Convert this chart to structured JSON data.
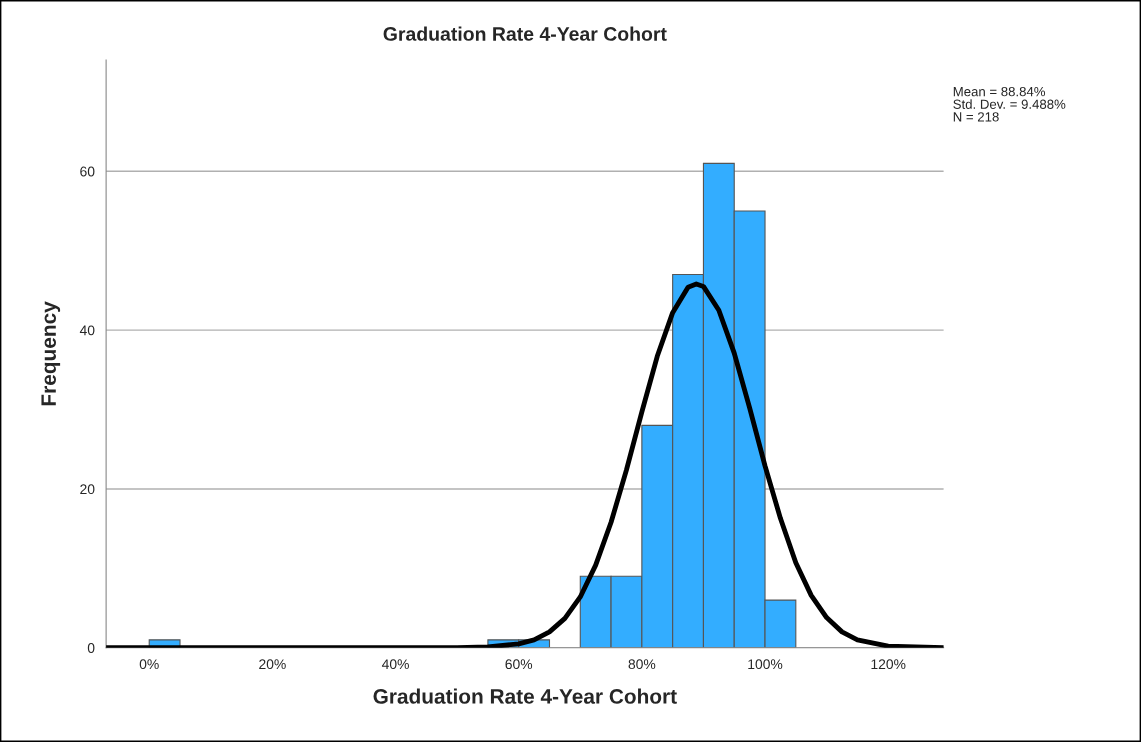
{
  "chart_data": {
    "type": "histogram",
    "title": "Graduation Rate 4-Year Cohort",
    "xlabel": "Graduation Rate 4-Year Cohort",
    "ylabel": "Frequency",
    "bins": [
      0,
      5,
      10,
      15,
      20,
      25,
      30,
      35,
      40,
      45,
      50,
      55,
      60,
      65,
      70,
      75,
      80,
      85,
      90,
      95,
      100,
      105
    ],
    "values": [
      1,
      0,
      0,
      0,
      0,
      0,
      0,
      0,
      0,
      0,
      0,
      1,
      1,
      0,
      9,
      9,
      28,
      47,
      61,
      55,
      6
    ],
    "color": "#33adff",
    "series": [
      {
        "type": "line",
        "color": "#000000",
        "x": [
          -7,
          20,
          40,
          50,
          55,
          60,
          62.5,
          65,
          67.5,
          70,
          72.5,
          75,
          77.5,
          80,
          82.5,
          85,
          87.5,
          88.84,
          90,
          92.5,
          95,
          97.5,
          100,
          102.5,
          105,
          107.5,
          110,
          112.5,
          115,
          120,
          129
        ],
        "values": [
          0,
          0,
          0,
          0,
          0.1,
          0.5,
          1.0,
          2.0,
          3.7,
          6.4,
          10.4,
          15.8,
          22.4,
          29.7,
          36.7,
          42.2,
          45.4,
          45.8,
          45.5,
          42.5,
          37.1,
          30.2,
          22.9,
          16.3,
          10.7,
          6.6,
          3.8,
          2.0,
          1.0,
          0.2,
          0
        ]
      }
    ],
    "xlim": [
      -7,
      129
    ],
    "ylim": [
      0,
      74
    ],
    "xticks": [
      {
        "value": 0,
        "label": "0%"
      },
      {
        "value": 20,
        "label": "20%"
      },
      {
        "value": 40,
        "label": "40%"
      },
      {
        "value": 60,
        "label": "60%"
      },
      {
        "value": 80,
        "label": "80%"
      },
      {
        "value": 100,
        "label": "100%"
      },
      {
        "value": 120,
        "label": "120%"
      }
    ],
    "yticks": [
      0,
      20,
      40,
      60
    ],
    "grid": "y",
    "annotations": [
      "Mean = 88.84%",
      "Std. Dev. = 9.488%",
      "N = 218"
    ]
  }
}
